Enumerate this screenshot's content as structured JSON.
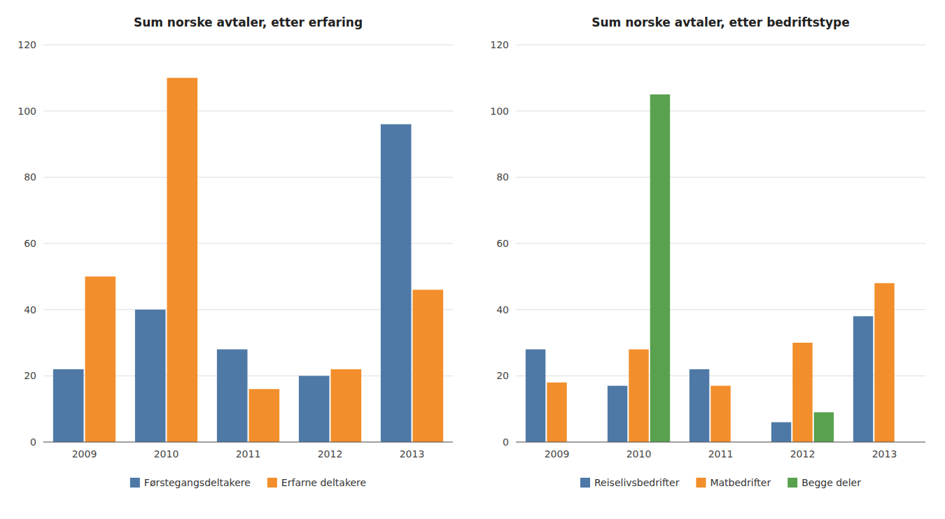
{
  "chart_data": [
    {
      "type": "bar",
      "title": "Sum norske avtaler, etter erfaring",
      "categories": [
        "2009",
        "2010",
        "2011",
        "2012",
        "2013"
      ],
      "series": [
        {
          "name": "Førstegangsdeltakere",
          "values": [
            22,
            40,
            28,
            20,
            96
          ]
        },
        {
          "name": "Erfarne deltakere",
          "values": [
            50,
            110,
            16,
            22,
            46
          ]
        }
      ],
      "ylim": [
        0,
        120
      ],
      "yticks": [
        0,
        20,
        40,
        60,
        80,
        100,
        120
      ],
      "grid": true,
      "legend": "bottom"
    },
    {
      "type": "bar",
      "title": "Sum norske avtaler, etter bedriftstype",
      "categories": [
        "2009",
        "2010",
        "2011",
        "2012",
        "2013"
      ],
      "series": [
        {
          "name": "Reiselivsbedrifter",
          "values": [
            28,
            17,
            22,
            6,
            38
          ]
        },
        {
          "name": "Matbedrifter",
          "values": [
            18,
            28,
            17,
            30,
            48
          ]
        },
        {
          "name": "Begge deler",
          "values": [
            0,
            105,
            0,
            9,
            0
          ]
        }
      ],
      "ylim": [
        0,
        120
      ],
      "yticks": [
        0,
        20,
        40,
        60,
        80,
        100,
        120
      ],
      "grid": true,
      "legend": "bottom"
    }
  ]
}
